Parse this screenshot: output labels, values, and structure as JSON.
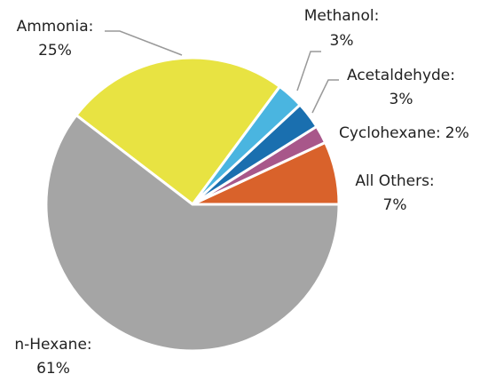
{
  "chart_data": {
    "type": "pie",
    "categories": [
      "All Others:",
      "Cyclohexane:",
      "Acetaldehyde:",
      "Methanol:",
      "Ammonia:",
      "n-Hexane:"
    ],
    "values": [
      7,
      2,
      3,
      3,
      25,
      61
    ],
    "value_labels": [
      "7%",
      "2%",
      "3%",
      "3%",
      "25%",
      "61%"
    ],
    "colors": [
      "#d9622b",
      "#a8578a",
      "#1a6faf",
      "#4ab5e0",
      "#e8e342",
      "#a5a5a5"
    ]
  }
}
